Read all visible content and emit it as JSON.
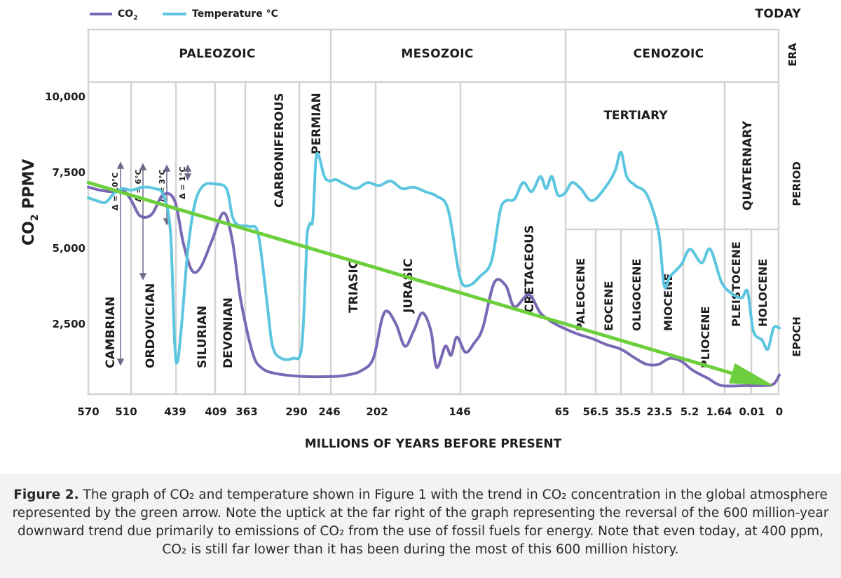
{
  "chart_data": {
    "type": "line",
    "legend": [
      {
        "name": "CO",
        "sub": "2",
        "color": "#7b68b5"
      },
      {
        "name": "Temperature °C",
        "color": "#5cc6e0"
      }
    ],
    "today_label": "TODAY",
    "ylabel": {
      "text": "CO",
      "sub": "2",
      "rest": " PPMV"
    },
    "ytick_labels": [
      "10,000",
      "7,500",
      "5,000",
      "2,500"
    ],
    "xlabel": "MILLIONS OF YEARS BEFORE PRESENT",
    "xtick_labels": [
      "570",
      "510",
      "439",
      "409",
      "363",
      "290",
      "246",
      "202",
      "146",
      "65",
      "56.5",
      "35.5",
      "23.5",
      "5.2",
      "1.64",
      "0.01",
      "0"
    ],
    "row_labels": [
      "ERA",
      "PERIOD",
      "EPOCH"
    ],
    "eras": [
      "PALEOZOIC",
      "MESOZOIC",
      "CENOZOIC"
    ],
    "periods": [
      "CAMBRIAN",
      "ORDOVICIAN",
      "SILURIAN",
      "DEVONIAN",
      "CARBONIFEROUS",
      "PERMIAN",
      "TRIASIC",
      "JURASIC",
      "CRETACEOUS",
      "TERTIARY",
      "QUATERNARY"
    ],
    "epochs": [
      "PALEOCENE",
      "EOCENE",
      "OLIGOCENE",
      "MIOCENE",
      "PLIOCENE",
      "PLEISTOCENE",
      "HOLOCENE"
    ],
    "temperature_deltas": [
      "Δ = 10°C",
      "Δ = 6°C",
      "Δ = 3°C",
      "Δ = 1°C"
    ],
    "ylim": [
      0,
      10000
    ],
    "series": [
      {
        "name": "CO2",
        "color": "#7b68b5",
        "points": [
          [
            0,
            6950
          ],
          [
            0.4,
            6850
          ],
          [
            0.8,
            6800
          ],
          [
            1.2,
            6850
          ],
          [
            1.5,
            6500
          ],
          [
            1.8,
            6000
          ],
          [
            2.2,
            6050
          ],
          [
            2.6,
            6700
          ],
          [
            3.0,
            6500
          ],
          [
            3.3,
            5100
          ],
          [
            3.6,
            4200
          ],
          [
            3.9,
            4300
          ],
          [
            4.3,
            5200
          ],
          [
            4.7,
            6100
          ],
          [
            5.0,
            5200
          ],
          [
            5.3,
            3200
          ],
          [
            5.7,
            1500
          ],
          [
            6.0,
            1000
          ],
          [
            6.5,
            800
          ],
          [
            7.5,
            700
          ],
          [
            8.5,
            700
          ],
          [
            9.0,
            750
          ],
          [
            9.5,
            900
          ],
          [
            9.9,
            1300
          ],
          [
            10.2,
            2600
          ],
          [
            10.4,
            2850
          ],
          [
            10.7,
            2400
          ],
          [
            11.0,
            1700
          ],
          [
            11.3,
            2200
          ],
          [
            11.6,
            2800
          ],
          [
            11.9,
            2200
          ],
          [
            12.1,
            1000
          ],
          [
            12.4,
            1700
          ],
          [
            12.6,
            1400
          ],
          [
            12.8,
            2000
          ],
          [
            13.1,
            1500
          ],
          [
            13.4,
            1800
          ],
          [
            13.7,
            2300
          ],
          [
            14.1,
            3800
          ],
          [
            14.5,
            3700
          ],
          [
            14.8,
            3000
          ],
          [
            15.3,
            3400
          ],
          [
            15.7,
            2800
          ],
          [
            16.1,
            2500
          ],
          [
            16.5,
            2300
          ],
          [
            17.0,
            2100
          ],
          [
            17.5,
            1950
          ],
          [
            18.0,
            1750
          ],
          [
            18.5,
            1600
          ],
          [
            19.0,
            1300
          ],
          [
            19.4,
            1100
          ],
          [
            19.8,
            1100
          ],
          [
            20.2,
            1300
          ],
          [
            20.6,
            1200
          ],
          [
            21.0,
            900
          ],
          [
            21.5,
            650
          ],
          [
            22.0,
            400
          ],
          [
            22.8,
            400
          ],
          [
            23.4,
            400
          ],
          [
            23.8,
            450
          ],
          [
            24.0,
            750
          ]
        ]
      },
      {
        "name": "Temperature °C",
        "color": "#5cc6e0",
        "points": [
          [
            0,
            6600
          ],
          [
            0.3,
            6500
          ],
          [
            0.6,
            6450
          ],
          [
            0.9,
            6750
          ],
          [
            1.2,
            6900
          ],
          [
            1.5,
            6850
          ],
          [
            1.9,
            6950
          ],
          [
            2.3,
            6900
          ],
          [
            2.6,
            6700
          ],
          [
            2.85,
            5500
          ],
          [
            3.0,
            1800
          ],
          [
            3.1,
            1200
          ],
          [
            3.25,
            2500
          ],
          [
            3.45,
            4800
          ],
          [
            3.7,
            6400
          ],
          [
            4.0,
            7000
          ],
          [
            4.4,
            7050
          ],
          [
            4.8,
            6900
          ],
          [
            5.0,
            6000
          ],
          [
            5.2,
            5700
          ],
          [
            5.6,
            5650
          ],
          [
            5.9,
            5400
          ],
          [
            6.2,
            3200
          ],
          [
            6.4,
            1700
          ],
          [
            6.7,
            1300
          ],
          [
            7.1,
            1300
          ],
          [
            7.4,
            1600
          ],
          [
            7.55,
            4200
          ],
          [
            7.6,
            5400
          ],
          [
            7.7,
            5750
          ],
          [
            7.8,
            5900
          ],
          [
            7.9,
            7800
          ],
          [
            8.0,
            8000
          ],
          [
            8.2,
            7300
          ],
          [
            8.4,
            7150
          ],
          [
            8.6,
            7200
          ],
          [
            8.9,
            7050
          ],
          [
            9.3,
            6900
          ],
          [
            9.7,
            7100
          ],
          [
            10.1,
            7000
          ],
          [
            10.5,
            7150
          ],
          [
            10.9,
            6900
          ],
          [
            11.3,
            6950
          ],
          [
            11.7,
            6800
          ],
          [
            12.1,
            6650
          ],
          [
            12.5,
            6200
          ],
          [
            12.9,
            4000
          ],
          [
            13.2,
            3700
          ],
          [
            13.6,
            4000
          ],
          [
            14.0,
            4500
          ],
          [
            14.3,
            6150
          ],
          [
            14.5,
            6500
          ],
          [
            14.8,
            6550
          ],
          [
            15.1,
            7100
          ],
          [
            15.4,
            6800
          ],
          [
            15.7,
            7300
          ],
          [
            15.9,
            6900
          ],
          [
            16.1,
            7300
          ],
          [
            16.3,
            6700
          ],
          [
            16.55,
            6750
          ],
          [
            16.8,
            7100
          ],
          [
            17.1,
            6900
          ],
          [
            17.5,
            6500
          ],
          [
            18.0,
            7000
          ],
          [
            18.3,
            7500
          ],
          [
            18.5,
            8100
          ],
          [
            18.7,
            7300
          ],
          [
            19.0,
            7000
          ],
          [
            19.4,
            6700
          ],
          [
            19.8,
            5500
          ],
          [
            20.0,
            3700
          ],
          [
            20.2,
            4000
          ],
          [
            20.6,
            4400
          ],
          [
            20.9,
            4900
          ],
          [
            21.3,
            4450
          ],
          [
            21.6,
            4900
          ],
          [
            22.0,
            3800
          ],
          [
            22.4,
            3400
          ],
          [
            22.7,
            3300
          ],
          [
            22.9,
            3500
          ],
          [
            23.1,
            2200
          ],
          [
            23.4,
            1900
          ],
          [
            23.6,
            1600
          ],
          [
            23.8,
            2300
          ],
          [
            24.0,
            2300
          ]
        ]
      }
    ],
    "trend_arrow": {
      "name": "CO2 trend",
      "color": "#6dcf3d",
      "from": [
        0,
        7100
      ],
      "to": [
        23.8,
        400
      ]
    }
  },
  "caption": {
    "label": "Figure 2.",
    "text": " The graph of CO₂ and temperature shown in Figure 1 with the trend in CO₂ concentration in the global atmosphere represented by the green arrow. Note the uptick at the far right of the graph representing the reversal of the 600 million-year downward trend due primarily to emissions of CO₂ from the use of fossil fuels for energy. Note that even today, at 400 ppm, CO₂ is still far lower than it has been during the most of this 600 million history."
  }
}
